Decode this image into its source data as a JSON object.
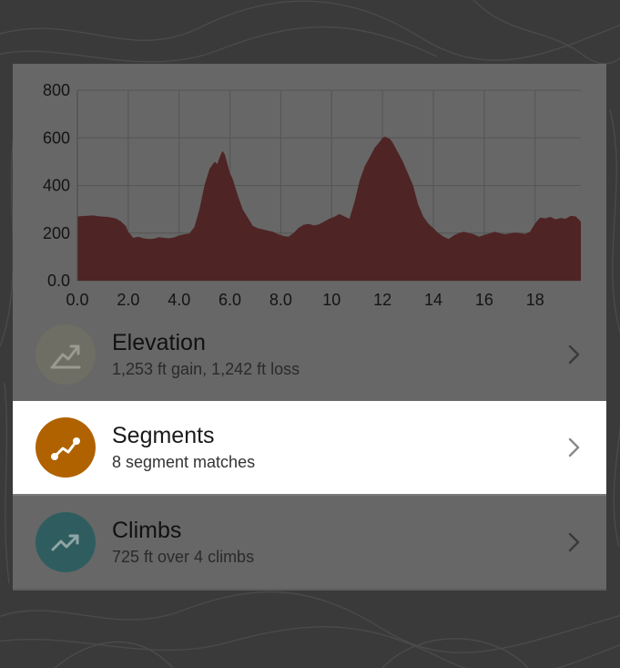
{
  "colors": {
    "background": "#3a3a3a",
    "dim_overlay": "#676767",
    "elevation_area": "#4f2424",
    "elevation_icon_bg": "#6e6e64",
    "segments_icon_bg": "#b06200",
    "climbs_icon_bg": "#2f5d5f"
  },
  "chart_data": {
    "type": "area",
    "title": "",
    "xlabel": "",
    "ylabel": "",
    "xlim": [
      0,
      19.8
    ],
    "ylim": [
      0,
      800
    ],
    "grid": true,
    "x_ticks": [
      "0.0",
      "2.0",
      "4.0",
      "6.0",
      "8.0",
      "10",
      "12",
      "14",
      "16",
      "18"
    ],
    "y_ticks": [
      "800",
      "600",
      "400",
      "200",
      "0.0"
    ],
    "x_tick_values": [
      0,
      2,
      4,
      6,
      8,
      10,
      12,
      14,
      16,
      18
    ],
    "y_tick_values": [
      800,
      600,
      400,
      200,
      0
    ],
    "series": [
      {
        "color": "#4f2424",
        "x": [
          0,
          0.3,
          0.6,
          0.9,
          1.2,
          1.5,
          1.7,
          1.9,
          2.0,
          2.2,
          2.4,
          2.6,
          2.8,
          3.0,
          3.2,
          3.4,
          3.6,
          3.8,
          4.0,
          4.2,
          4.4,
          4.6,
          4.8,
          5.0,
          5.2,
          5.4,
          5.5,
          5.6,
          5.7,
          5.8,
          5.9,
          6.0,
          6.1,
          6.3,
          6.5,
          6.7,
          6.9,
          7.1,
          7.3,
          7.5,
          7.7,
          7.9,
          8.1,
          8.3,
          8.5,
          8.7,
          8.9,
          9.1,
          9.3,
          9.5,
          9.7,
          9.9,
          10.1,
          10.3,
          10.5,
          10.7,
          10.9,
          11.1,
          11.3,
          11.5,
          11.7,
          11.9,
          12.0,
          12.1,
          12.2,
          12.3,
          12.4,
          12.6,
          12.8,
          13.0,
          13.2,
          13.4,
          13.6,
          13.8,
          14.0,
          14.2,
          14.4,
          14.6,
          14.8,
          15.0,
          15.2,
          15.4,
          15.6,
          15.8,
          16.0,
          16.2,
          16.4,
          16.6,
          16.8,
          17.0,
          17.2,
          17.4,
          17.6,
          17.8,
          18.0,
          18.2,
          18.4,
          18.6,
          18.8,
          19.0,
          19.2,
          19.4,
          19.6,
          19.8
        ],
        "y": [
          270,
          272,
          274,
          270,
          268,
          262,
          250,
          230,
          205,
          180,
          185,
          178,
          175,
          176,
          183,
          180,
          178,
          182,
          190,
          195,
          198,
          225,
          300,
          400,
          470,
          500,
          490,
          520,
          545,
          530,
          490,
          450,
          430,
          360,
          300,
          265,
          230,
          220,
          215,
          210,
          205,
          195,
          188,
          185,
          200,
          222,
          235,
          238,
          232,
          236,
          248,
          260,
          268,
          280,
          270,
          260,
          330,
          420,
          480,
          520,
          560,
          585,
          600,
          605,
          600,
          595,
          580,
          540,
          500,
          450,
          400,
          320,
          270,
          240,
          220,
          200,
          185,
          175,
          190,
          200,
          205,
          200,
          195,
          185,
          192,
          198,
          205,
          200,
          195,
          198,
          202,
          200,
          196,
          205,
          240,
          265,
          262,
          268,
          258,
          263,
          260,
          272,
          270,
          248
        ]
      }
    ]
  },
  "rows": [
    {
      "icon": "chart-trend-icon",
      "title": "Elevation",
      "subtitle": "1,253 ft gain, 1,242 ft loss"
    },
    {
      "icon": "segment-path-icon",
      "title": "Segments",
      "subtitle": "8 segment matches"
    },
    {
      "icon": "trend-up-icon",
      "title": "Climbs",
      "subtitle": "725 ft over 4 climbs"
    }
  ]
}
